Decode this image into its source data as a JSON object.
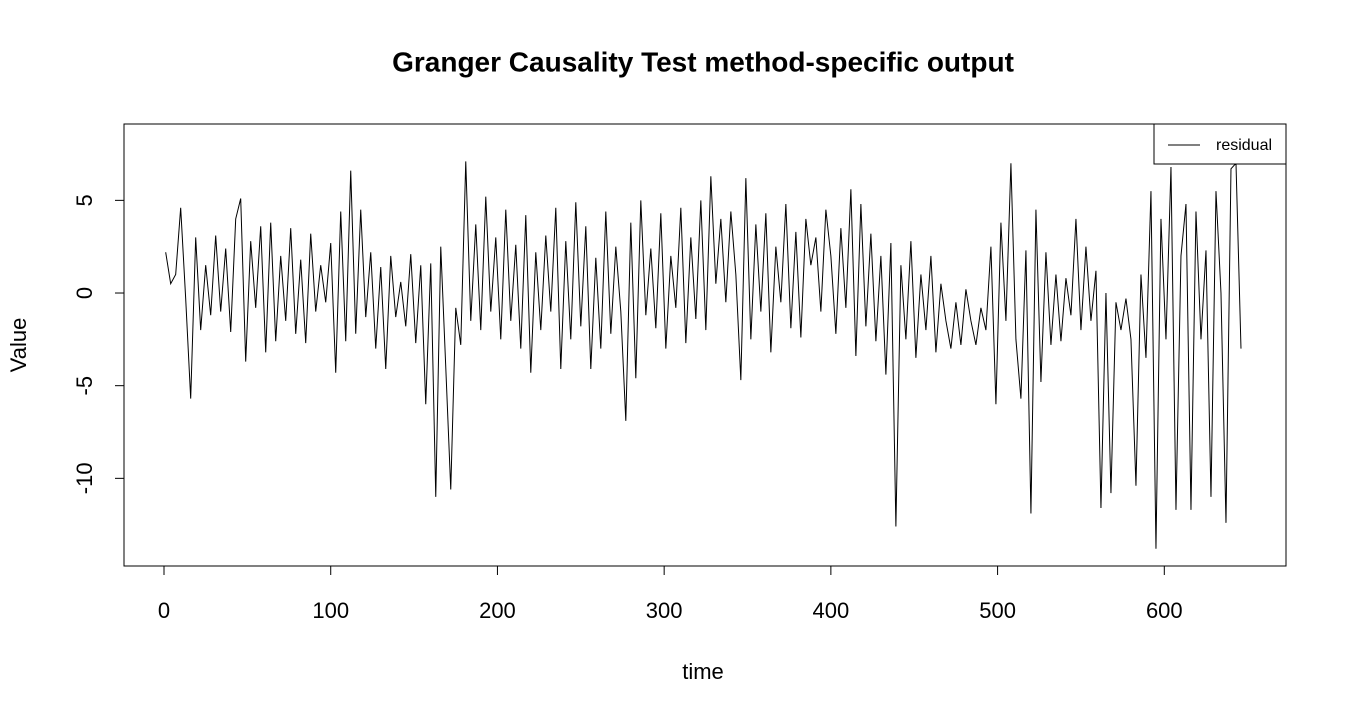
{
  "chart_data": {
    "type": "line",
    "title": "Granger Causality Test method-specific output",
    "xlabel": "time",
    "ylabel": "Value",
    "x": [
      1,
      4,
      7,
      10,
      13,
      16,
      19,
      22,
      25,
      28,
      31,
      34,
      37,
      40,
      43,
      46,
      49,
      52,
      55,
      58,
      61,
      64,
      67,
      70,
      73,
      76,
      79,
      82,
      85,
      88,
      91,
      94,
      97,
      100,
      103,
      106,
      109,
      112,
      115,
      118,
      121,
      124,
      127,
      130,
      133,
      136,
      139,
      142,
      145,
      148,
      151,
      154,
      157,
      160,
      163,
      166,
      169,
      172,
      175,
      178,
      181,
      184,
      187,
      190,
      193,
      196,
      199,
      202,
      205,
      208,
      211,
      214,
      217,
      220,
      223,
      226,
      229,
      232,
      235,
      238,
      241,
      244,
      247,
      250,
      253,
      256,
      259,
      262,
      265,
      268,
      271,
      274,
      277,
      280,
      283,
      286,
      289,
      292,
      295,
      298,
      301,
      304,
      307,
      310,
      313,
      316,
      319,
      322,
      325,
      328,
      331,
      334,
      337,
      340,
      343,
      346,
      349,
      352,
      355,
      358,
      361,
      364,
      367,
      370,
      373,
      376,
      379,
      382,
      385,
      388,
      391,
      394,
      397,
      400,
      403,
      406,
      409,
      412,
      415,
      418,
      421,
      424,
      427,
      430,
      433,
      436,
      439,
      442,
      445,
      448,
      451,
      454,
      457,
      460,
      463,
      466,
      469,
      472,
      475,
      478,
      481,
      484,
      487,
      490,
      493,
      496,
      499,
      502,
      505,
      508,
      511,
      514,
      517,
      520,
      523,
      526,
      529,
      532,
      535,
      538,
      541,
      544,
      547,
      550,
      553,
      556,
      559,
      562,
      565,
      568,
      571,
      574,
      577,
      580,
      583,
      586,
      589,
      592,
      595,
      598,
      601,
      604,
      607,
      610,
      613,
      616,
      619,
      622,
      625,
      628,
      631,
      634,
      637,
      640,
      643,
      646
    ],
    "series": [
      {
        "name": "residual",
        "color": "#000000",
        "values": [
          2.2,
          0.5,
          1.0,
          4.6,
          -0.3,
          -5.7,
          3.0,
          -2.0,
          1.5,
          -1.2,
          3.1,
          -1.0,
          2.4,
          -2.1,
          4.0,
          5.1,
          -3.7,
          2.8,
          -0.8,
          3.6,
          -3.2,
          3.8,
          -2.6,
          2.0,
          -1.5,
          3.5,
          -2.2,
          1.8,
          -2.7,
          3.2,
          -1.0,
          1.5,
          -0.5,
          2.7,
          -4.3,
          4.4,
          -2.6,
          6.6,
          -2.2,
          4.5,
          -1.3,
          2.2,
          -3.0,
          1.4,
          -4.1,
          2.0,
          -1.3,
          0.6,
          -1.8,
          2.1,
          -2.7,
          1.5,
          -6.0,
          1.6,
          -11.0,
          2.5,
          -4.0,
          -10.6,
          -0.8,
          -2.8,
          7.1,
          -1.5,
          3.7,
          -2.0,
          5.2,
          -1.0,
          3.0,
          -2.5,
          4.5,
          -1.5,
          2.6,
          -3.0,
          4.2,
          -4.3,
          2.2,
          -2.0,
          3.1,
          -1.0,
          4.6,
          -4.1,
          2.8,
          -2.5,
          4.9,
          -1.8,
          3.6,
          -4.1,
          1.9,
          -3.0,
          4.4,
          -2.2,
          2.5,
          -1.0,
          -6.9,
          3.8,
          -4.6,
          5.0,
          -1.2,
          2.4,
          -1.9,
          4.3,
          -3.0,
          2.0,
          -0.8,
          4.6,
          -2.7,
          3.0,
          -1.4,
          5.0,
          -2.0,
          6.3,
          0.5,
          4.0,
          -0.5,
          4.4,
          1.0,
          -4.7,
          6.2,
          -2.5,
          3.7,
          -1.0,
          4.3,
          -3.2,
          2.5,
          -0.5,
          4.8,
          -1.9,
          3.3,
          -2.4,
          4.0,
          1.5,
          3.0,
          -1.0,
          4.5,
          2.0,
          -2.2,
          3.5,
          -0.8,
          5.6,
          -3.4,
          4.8,
          -1.8,
          3.2,
          -2.6,
          2.0,
          -4.4,
          2.7,
          -12.6,
          1.5,
          -2.5,
          2.8,
          -3.5,
          1.0,
          -2.0,
          2.0,
          -3.2,
          0.5,
          -1.5,
          -3.0,
          -0.5,
          -2.8,
          0.2,
          -1.5,
          -2.8,
          -0.8,
          -2.0,
          2.5,
          -6.0,
          3.8,
          -1.5,
          7.0,
          -2.5,
          -5.7,
          2.3,
          -11.9,
          4.5,
          -4.8,
          2.2,
          -2.8,
          1.0,
          -2.6,
          0.8,
          -1.2,
          4.0,
          -2.0,
          2.5,
          -1.5,
          1.2,
          -11.6,
          0.0,
          -10.8,
          -0.5,
          -2.0,
          -0.3,
          -2.5,
          -10.4,
          1.0,
          -3.5,
          5.5,
          -13.8,
          4.0,
          -2.5,
          6.8,
          -11.7,
          2.0,
          4.8,
          -11.7,
          4.4,
          -2.5,
          2.3,
          -11.0,
          5.5,
          0.0,
          -12.4,
          6.7,
          7.0,
          -3.0
        ]
      }
    ],
    "xlim": [
      -24,
      673
    ],
    "ylim": [
      -14.73,
      9.12
    ],
    "xticks": [
      0,
      100,
      200,
      300,
      400,
      500,
      600
    ],
    "yticks": [
      -10,
      -5,
      0,
      5
    ],
    "legend": "top-right",
    "grid": false
  }
}
